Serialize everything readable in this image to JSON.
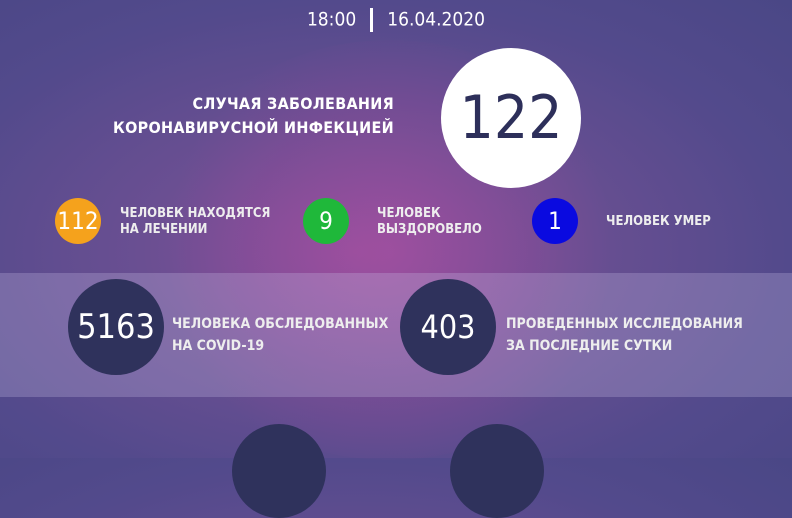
{
  "header": {
    "time": "18:00",
    "date": "16.04.2020"
  },
  "total": {
    "value": "122",
    "label_line1": "СЛУЧАЯ ЗАБОЛЕВАНИЯ",
    "label_line2": "КОРОНАВИРУСНОЙ ИНФЕКЦИЕЙ"
  },
  "stats": [
    {
      "value": "112",
      "line1": "ЧЕЛОВЕК НАХОДЯТСЯ",
      "line2": "НА ЛЕЧЕНИИ",
      "color": "#f5a21c"
    },
    {
      "value": "9",
      "line1": "ЧЕЛОВЕК",
      "line2": "ВЫЗДОРОВЕЛО",
      "color": "#1fb83a"
    },
    {
      "value": "1",
      "line1": "ЧЕЛОВЕК УМЕР",
      "line2": "",
      "color": "#0a0ae0"
    }
  ],
  "tests": [
    {
      "value": "5163",
      "line1": "ЧЕЛОВЕКА ОБСЛЕДОВАННЫХ",
      "line2": "НА COVID-19"
    },
    {
      "value": "403",
      "line1": "ПРОВЕДЕННЫХ ИССЛЕДОВАНИЯ",
      "line2": "ЗА ПОСЛЕДНИЕ СУТКИ"
    }
  ]
}
